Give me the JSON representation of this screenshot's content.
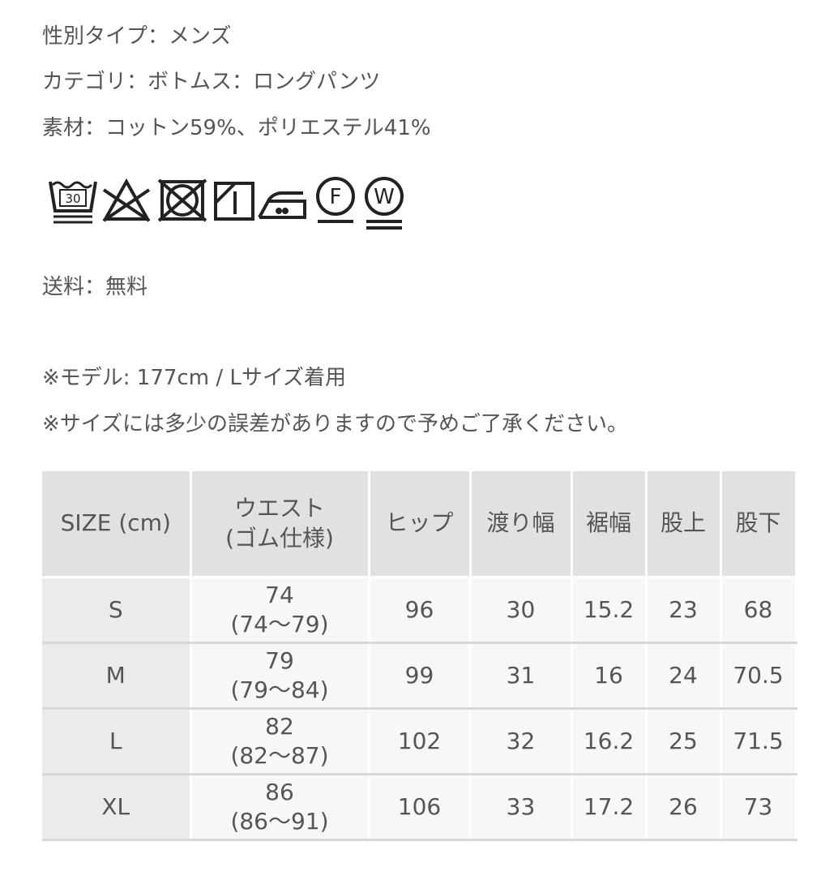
{
  "info": {
    "gender": "性別タイプ：メンズ",
    "category": "カテゴリ：ボトムス：ロングパンツ",
    "material": "素材：コットン59%、ポリエステル41%",
    "shipping": "送料：無料",
    "note_model": "※モデル: 177cm / Lサイズ着用",
    "note_size": "※サイズには多少の誤差がありますので予めご了承ください。"
  },
  "care_icons": [
    {
      "name": "wash-30-gentle-icon",
      "label": "30"
    },
    {
      "name": "no-bleach-icon"
    },
    {
      "name": "no-tumble-dry-icon"
    },
    {
      "name": "line-dry-shade-icon"
    },
    {
      "name": "iron-medium-icon"
    },
    {
      "name": "dry-clean-f-icon",
      "label": "F"
    },
    {
      "name": "wet-clean-w-icon",
      "label": "W"
    }
  ],
  "size_table": {
    "headers": [
      "SIZE (cm)",
      "ウエスト",
      "(ゴム仕様)",
      "ヒップ",
      "渡り幅",
      "裾幅",
      "股上",
      "股下"
    ],
    "rows": [
      {
        "size": "S",
        "waist": "74",
        "waist_range": "(74〜79)",
        "hip": "96",
        "thigh": "30",
        "hem": "15.2",
        "rise": "23",
        "inseam": "68"
      },
      {
        "size": "M",
        "waist": "79",
        "waist_range": "(79〜84)",
        "hip": "99",
        "thigh": "31",
        "hem": "16",
        "rise": "24",
        "inseam": "70.5"
      },
      {
        "size": "L",
        "waist": "82",
        "waist_range": "(82〜87)",
        "hip": "102",
        "thigh": "32",
        "hem": "16.2",
        "rise": "25",
        "inseam": "71.5"
      },
      {
        "size": "XL",
        "waist": "86",
        "waist_range": "(86〜91)",
        "hip": "106",
        "thigh": "33",
        "hem": "17.2",
        "rise": "26",
        "inseam": "73"
      }
    ]
  }
}
